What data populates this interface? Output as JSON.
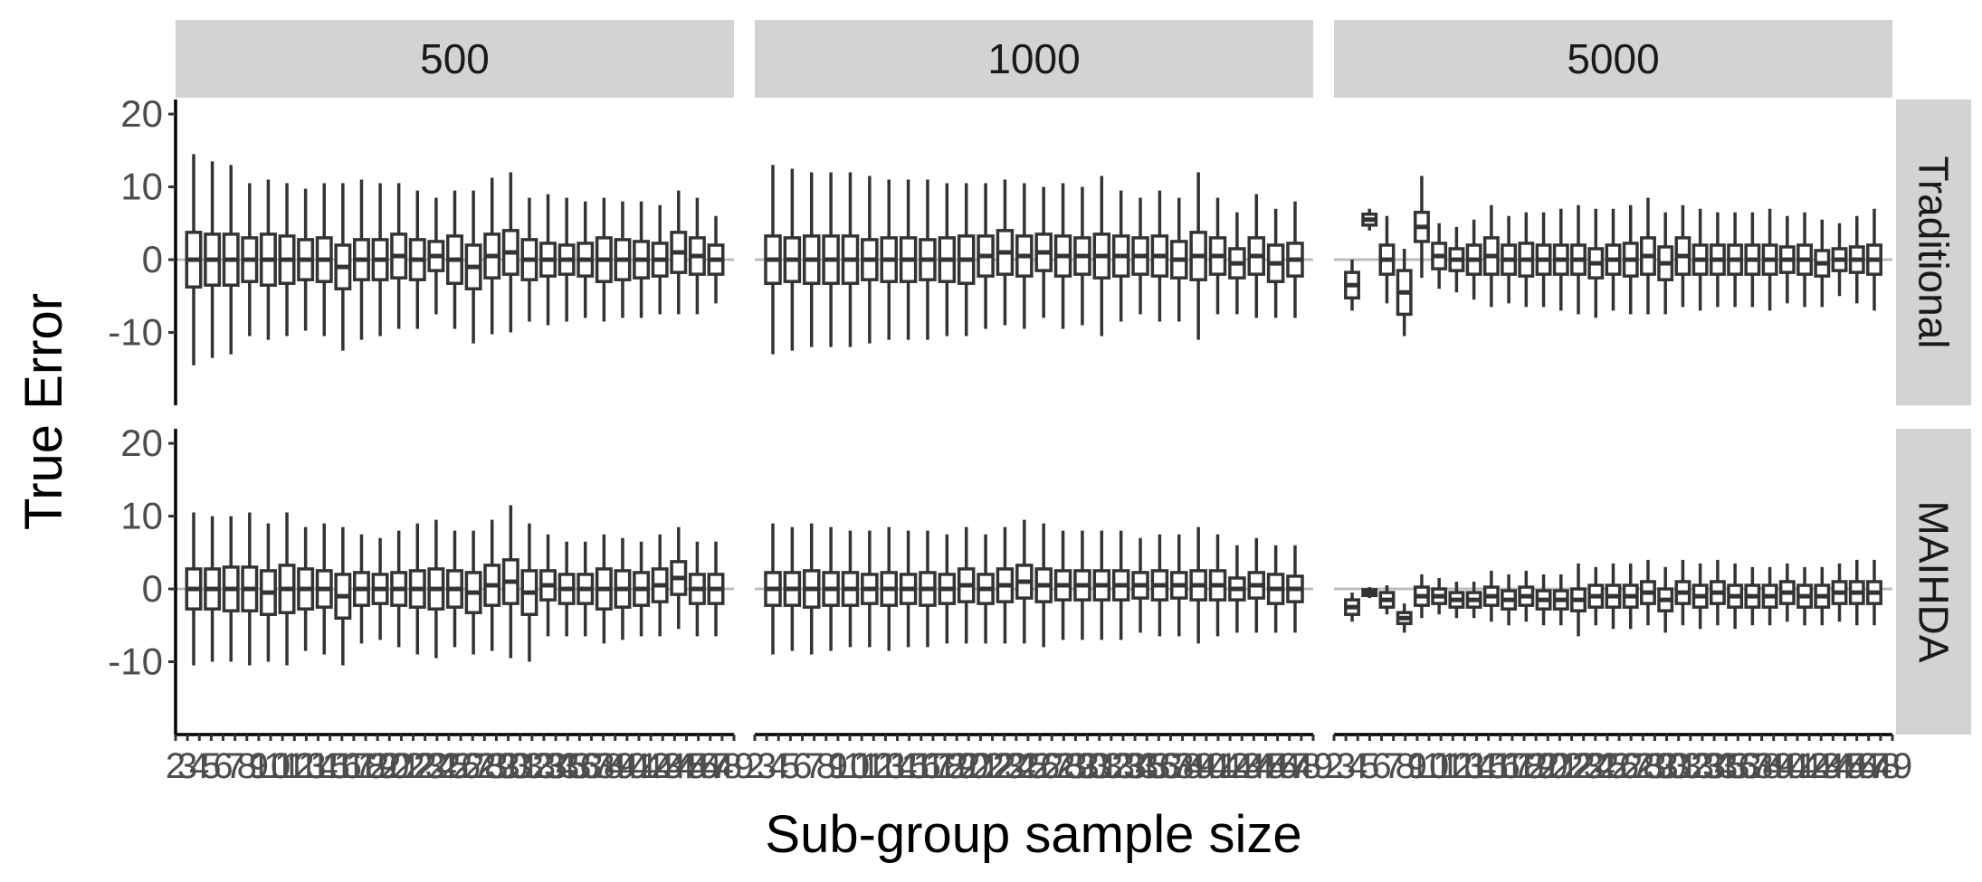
{
  "chart_data": {
    "type": "boxplot",
    "xlabel": "Sub-group sample size",
    "ylabel": "True Error",
    "ylim": [
      -20,
      22
    ],
    "yticks": [
      -10,
      0,
      10,
      20
    ],
    "grid": false,
    "reference_line_y": 0,
    "x_tick_labels": [
      "2",
      "3",
      "4",
      "5",
      "6",
      "7",
      "8",
      "9",
      "10",
      "11",
      "12",
      "13",
      "14",
      "15",
      "16",
      "17",
      "18",
      "19",
      "20",
      "21",
      "22",
      "23",
      "24",
      "25",
      "26",
      "27",
      "28",
      "29",
      "30",
      "31",
      "32",
      "33",
      "34",
      "35",
      "36",
      "37",
      "38",
      "39",
      "40",
      "41",
      "42",
      "43",
      "44",
      "45",
      "46",
      "47",
      "48",
      "49"
    ],
    "column_facets": [
      "500",
      "1000",
      "5000"
    ],
    "row_facets": [
      "Traditional",
      "MAIHDA"
    ],
    "panels": {
      "500|Traditional": [
        {
          "center": 0,
          "iqr": 7.5,
          "range": 29.0
        },
        {
          "center": 0,
          "iqr": 7.0,
          "range": 27.0
        },
        {
          "center": 0,
          "iqr": 7.0,
          "range": 26.0
        },
        {
          "center": 0,
          "iqr": 6.0,
          "range": 21.0
        },
        {
          "center": 0,
          "iqr": 7.0,
          "range": 22.0
        },
        {
          "center": 0,
          "iqr": 6.5,
          "range": 21.0
        },
        {
          "center": 0,
          "iqr": 5.5,
          "range": 19.5
        },
        {
          "center": 0,
          "iqr": 6.0,
          "range": 21.0
        },
        {
          "center": -1,
          "iqr": 6.0,
          "range": 23.0
        },
        {
          "center": 0,
          "iqr": 5.5,
          "range": 22.0
        },
        {
          "center": 0,
          "iqr": 5.5,
          "range": 21.0
        },
        {
          "center": 0.5,
          "iqr": 6.0,
          "range": 20.0
        },
        {
          "center": 0,
          "iqr": 5.5,
          "range": 19.0
        },
        {
          "center": 0.5,
          "iqr": 4.0,
          "range": 16.0
        },
        {
          "center": 0,
          "iqr": 6.5,
          "range": 19.0
        },
        {
          "center": -1,
          "iqr": 6.0,
          "range": 21.0
        },
        {
          "center": 0.5,
          "iqr": 6.0,
          "range": 21.5
        },
        {
          "center": 1,
          "iqr": 6.0,
          "range": 22.0
        },
        {
          "center": 0,
          "iqr": 5.5,
          "range": 17.0
        },
        {
          "center": 0,
          "iqr": 4.5,
          "range": 18.0
        },
        {
          "center": 0,
          "iqr": 4.0,
          "range": 17.0
        },
        {
          "center": 0,
          "iqr": 4.5,
          "range": 16.0
        },
        {
          "center": 0,
          "iqr": 6.0,
          "range": 17.0
        },
        {
          "center": 0,
          "iqr": 5.5,
          "range": 16.0
        },
        {
          "center": 0,
          "iqr": 5.0,
          "range": 16.0
        },
        {
          "center": 0,
          "iqr": 4.5,
          "range": 15.0
        },
        {
          "center": 1,
          "iqr": 5.5,
          "range": 17.0
        },
        {
          "center": 0.5,
          "iqr": 5.0,
          "range": 16.0
        },
        {
          "center": 0,
          "iqr": 4.0,
          "range": 12.0
        }
      ],
      "1000|Traditional": [
        {
          "center": 0,
          "iqr": 6.5,
          "range": 26.0
        },
        {
          "center": 0,
          "iqr": 6.0,
          "range": 25.0
        },
        {
          "center": 0,
          "iqr": 6.5,
          "range": 24.0
        },
        {
          "center": 0,
          "iqr": 6.5,
          "range": 24.0
        },
        {
          "center": 0,
          "iqr": 6.5,
          "range": 24.0
        },
        {
          "center": 0,
          "iqr": 5.5,
          "range": 23.0
        },
        {
          "center": 0,
          "iqr": 6.0,
          "range": 22.0
        },
        {
          "center": 0,
          "iqr": 6.0,
          "range": 22.0
        },
        {
          "center": 0,
          "iqr": 5.5,
          "range": 22.0
        },
        {
          "center": 0,
          "iqr": 6.0,
          "range": 21.0
        },
        {
          "center": 0,
          "iqr": 6.5,
          "range": 21.0
        },
        {
          "center": 0.5,
          "iqr": 5.5,
          "range": 20.0
        },
        {
          "center": 1,
          "iqr": 6.0,
          "range": 20.0
        },
        {
          "center": 0.5,
          "iqr": 5.5,
          "range": 20.0
        },
        {
          "center": 1,
          "iqr": 5.0,
          "range": 18.0
        },
        {
          "center": 0.5,
          "iqr": 5.5,
          "range": 20.0
        },
        {
          "center": 0.5,
          "iqr": 5.0,
          "range": 19.0
        },
        {
          "center": 0.5,
          "iqr": 6.0,
          "range": 22.0
        },
        {
          "center": 0.5,
          "iqr": 5.5,
          "range": 18.0
        },
        {
          "center": 0.5,
          "iqr": 5.0,
          "range": 16.0
        },
        {
          "center": 0.5,
          "iqr": 5.5,
          "range": 18.0
        },
        {
          "center": 0,
          "iqr": 5.0,
          "range": 17.0
        },
        {
          "center": 0.5,
          "iqr": 6.5,
          "range": 23.0
        },
        {
          "center": 0.5,
          "iqr": 5.0,
          "range": 16.0
        },
        {
          "center": -0.5,
          "iqr": 4.0,
          "range": 14.0
        },
        {
          "center": 0.5,
          "iqr": 5.0,
          "range": 17.0
        },
        {
          "center": -0.5,
          "iqr": 5.0,
          "range": 15.0
        },
        {
          "center": 0,
          "iqr": 4.5,
          "range": 16.0
        }
      ],
      "5000|Traditional": [
        {
          "center": -3.5,
          "iqr": 3.5,
          "range": 7.0
        },
        {
          "center": 5.5,
          "iqr": 1.5,
          "range": 3.0
        },
        {
          "center": 0,
          "iqr": 4.0,
          "range": 12.0
        },
        {
          "center": -4.5,
          "iqr": 6.0,
          "range": 12.0
        },
        {
          "center": 4.5,
          "iqr": 4.0,
          "range": 14.0
        },
        {
          "center": 0.5,
          "iqr": 3.5,
          "range": 9.0
        },
        {
          "center": 0,
          "iqr": 3.0,
          "range": 9.0
        },
        {
          "center": 0,
          "iqr": 4.0,
          "range": 11.0
        },
        {
          "center": 0.5,
          "iqr": 5.0,
          "range": 14.0
        },
        {
          "center": 0,
          "iqr": 4.0,
          "range": 12.0
        },
        {
          "center": 0,
          "iqr": 4.5,
          "range": 13.0
        },
        {
          "center": 0,
          "iqr": 4.0,
          "range": 13.0
        },
        {
          "center": 0,
          "iqr": 4.0,
          "range": 14.0
        },
        {
          "center": 0,
          "iqr": 4.0,
          "range": 15.0
        },
        {
          "center": -0.5,
          "iqr": 4.0,
          "range": 15.0
        },
        {
          "center": 0,
          "iqr": 4.0,
          "range": 14.0
        },
        {
          "center": 0,
          "iqr": 4.5,
          "range": 15.0
        },
        {
          "center": 0.5,
          "iqr": 5.0,
          "range": 16.0
        },
        {
          "center": -0.5,
          "iqr": 4.5,
          "range": 14.0
        },
        {
          "center": 0.5,
          "iqr": 5.0,
          "range": 14.0
        },
        {
          "center": 0,
          "iqr": 4.0,
          "range": 14.0
        },
        {
          "center": 0,
          "iqr": 4.0,
          "range": 13.0
        },
        {
          "center": 0,
          "iqr": 4.0,
          "range": 13.0
        },
        {
          "center": 0,
          "iqr": 4.0,
          "range": 13.0
        },
        {
          "center": 0,
          "iqr": 4.0,
          "range": 14.0
        },
        {
          "center": 0,
          "iqr": 3.5,
          "range": 12.0
        },
        {
          "center": 0,
          "iqr": 4.0,
          "range": 13.0
        },
        {
          "center": -0.5,
          "iqr": 3.5,
          "range": 12.0
        },
        {
          "center": 0,
          "iqr": 3.0,
          "range": 10.0
        },
        {
          "center": 0,
          "iqr": 3.5,
          "range": 12.0
        },
        {
          "center": 0,
          "iqr": 4.0,
          "range": 14.0
        }
      ],
      "500|MAIHDA": [
        {
          "center": 0,
          "iqr": 5.5,
          "range": 21.0
        },
        {
          "center": 0,
          "iqr": 5.5,
          "range": 20.0
        },
        {
          "center": 0,
          "iqr": 6.0,
          "range": 20.0
        },
        {
          "center": 0,
          "iqr": 6.0,
          "range": 21.0
        },
        {
          "center": -0.5,
          "iqr": 6.0,
          "range": 19.0
        },
        {
          "center": 0,
          "iqr": 6.5,
          "range": 21.0
        },
        {
          "center": 0,
          "iqr": 5.5,
          "range": 17.0
        },
        {
          "center": 0,
          "iqr": 5.0,
          "range": 18.0
        },
        {
          "center": -1,
          "iqr": 6.0,
          "range": 19.0
        },
        {
          "center": 0,
          "iqr": 4.5,
          "range": 15.0
        },
        {
          "center": 0,
          "iqr": 4.0,
          "range": 14.0
        },
        {
          "center": 0,
          "iqr": 4.5,
          "range": 16.0
        },
        {
          "center": 0,
          "iqr": 5.0,
          "range": 18.0
        },
        {
          "center": 0,
          "iqr": 5.5,
          "range": 19.0
        },
        {
          "center": 0,
          "iqr": 5.0,
          "range": 16.0
        },
        {
          "center": -0.5,
          "iqr": 5.5,
          "range": 17.0
        },
        {
          "center": 0.5,
          "iqr": 5.5,
          "range": 18.0
        },
        {
          "center": 1,
          "iqr": 6.0,
          "range": 21.0
        },
        {
          "center": -0.5,
          "iqr": 6.0,
          "range": 19.0
        },
        {
          "center": 0.5,
          "iqr": 4.0,
          "range": 14.0
        },
        {
          "center": 0,
          "iqr": 4.0,
          "range": 13.0
        },
        {
          "center": 0,
          "iqr": 4.0,
          "range": 13.0
        },
        {
          "center": 0,
          "iqr": 5.5,
          "range": 15.0
        },
        {
          "center": 0,
          "iqr": 5.0,
          "range": 14.0
        },
        {
          "center": 0,
          "iqr": 4.5,
          "range": 13.0
        },
        {
          "center": 0.5,
          "iqr": 4.5,
          "range": 14.0
        },
        {
          "center": 1.5,
          "iqr": 4.5,
          "range": 14.0
        },
        {
          "center": 0,
          "iqr": 4.0,
          "range": 13.0
        },
        {
          "center": 0,
          "iqr": 4.0,
          "range": 13.0
        }
      ],
      "1000|MAIHDA": [
        {
          "center": 0,
          "iqr": 4.5,
          "range": 18.0
        },
        {
          "center": 0,
          "iqr": 4.5,
          "range": 17.0
        },
        {
          "center": 0,
          "iqr": 5.0,
          "range": 18.0
        },
        {
          "center": 0,
          "iqr": 4.5,
          "range": 17.0
        },
        {
          "center": 0,
          "iqr": 4.5,
          "range": 16.0
        },
        {
          "center": 0,
          "iqr": 4.0,
          "range": 16.0
        },
        {
          "center": 0,
          "iqr": 4.5,
          "range": 17.0
        },
        {
          "center": 0,
          "iqr": 4.0,
          "range": 16.0
        },
        {
          "center": 0,
          "iqr": 4.5,
          "range": 16.0
        },
        {
          "center": 0,
          "iqr": 4.0,
          "range": 15.0
        },
        {
          "center": 0.5,
          "iqr": 4.5,
          "range": 16.0
        },
        {
          "center": 0,
          "iqr": 4.0,
          "range": 15.0
        },
        {
          "center": 0.5,
          "iqr": 4.5,
          "range": 16.0
        },
        {
          "center": 1,
          "iqr": 4.5,
          "range": 17.0
        },
        {
          "center": 0.5,
          "iqr": 4.5,
          "range": 17.0
        },
        {
          "center": 0.5,
          "iqr": 4.0,
          "range": 15.0
        },
        {
          "center": 0.5,
          "iqr": 4.0,
          "range": 15.0
        },
        {
          "center": 0.5,
          "iqr": 4.0,
          "range": 15.0
        },
        {
          "center": 0.5,
          "iqr": 4.0,
          "range": 15.0
        },
        {
          "center": 0.5,
          "iqr": 3.5,
          "range": 13.0
        },
        {
          "center": 0.5,
          "iqr": 4.0,
          "range": 14.0
        },
        {
          "center": 0.5,
          "iqr": 3.5,
          "range": 14.0
        },
        {
          "center": 0.5,
          "iqr": 4.0,
          "range": 16.0
        },
        {
          "center": 0.5,
          "iqr": 4.0,
          "range": 14.0
        },
        {
          "center": 0,
          "iqr": 3.0,
          "range": 12.0
        },
        {
          "center": 0.5,
          "iqr": 3.5,
          "range": 13.0
        },
        {
          "center": 0,
          "iqr": 4.0,
          "range": 12.0
        },
        {
          "center": 0,
          "iqr": 3.5,
          "range": 12.0
        }
      ],
      "5000|MAIHDA": [
        {
          "center": -2.5,
          "iqr": 2.0,
          "range": 4.0
        },
        {
          "center": -0.5,
          "iqr": 0.8,
          "range": 1.5
        },
        {
          "center": -1.5,
          "iqr": 2.0,
          "range": 4.0
        },
        {
          "center": -4,
          "iqr": 1.5,
          "range": 4.0
        },
        {
          "center": -1,
          "iqr": 2.5,
          "range": 6.0
        },
        {
          "center": -1,
          "iqr": 2.0,
          "range": 5.0
        },
        {
          "center": -1.5,
          "iqr": 2.0,
          "range": 5.0
        },
        {
          "center": -1.5,
          "iqr": 2.0,
          "range": 5.0
        },
        {
          "center": -1,
          "iqr": 2.5,
          "range": 7.0
        },
        {
          "center": -1.5,
          "iqr": 2.5,
          "range": 7.0
        },
        {
          "center": -1,
          "iqr": 2.5,
          "range": 7.0
        },
        {
          "center": -1.5,
          "iqr": 2.5,
          "range": 7.0
        },
        {
          "center": -1.5,
          "iqr": 2.5,
          "range": 7.0
        },
        {
          "center": -1.5,
          "iqr": 3.0,
          "range": 10.0
        },
        {
          "center": -1,
          "iqr": 3.0,
          "range": 8.0
        },
        {
          "center": -1,
          "iqr": 3.0,
          "range": 9.0
        },
        {
          "center": -1,
          "iqr": 3.0,
          "range": 9.0
        },
        {
          "center": -0.5,
          "iqr": 3.0,
          "range": 9.0
        },
        {
          "center": -1.5,
          "iqr": 3.0,
          "range": 9.0
        },
        {
          "center": -0.5,
          "iqr": 3.0,
          "range": 9.0
        },
        {
          "center": -1,
          "iqr": 3.0,
          "range": 9.0
        },
        {
          "center": -0.5,
          "iqr": 3.0,
          "range": 9.0
        },
        {
          "center": -1,
          "iqr": 3.0,
          "range": 9.0
        },
        {
          "center": -1,
          "iqr": 3.0,
          "range": 8.0
        },
        {
          "center": -1,
          "iqr": 3.0,
          "range": 8.0
        },
        {
          "center": -0.5,
          "iqr": 3.0,
          "range": 8.0
        },
        {
          "center": -1,
          "iqr": 3.0,
          "range": 8.0
        },
        {
          "center": -1,
          "iqr": 3.0,
          "range": 8.0
        },
        {
          "center": -0.5,
          "iqr": 3.0,
          "range": 8.0
        },
        {
          "center": -0.5,
          "iqr": 3.0,
          "range": 9.0
        },
        {
          "center": -0.5,
          "iqr": 3.0,
          "range": 9.0
        }
      ]
    }
  }
}
